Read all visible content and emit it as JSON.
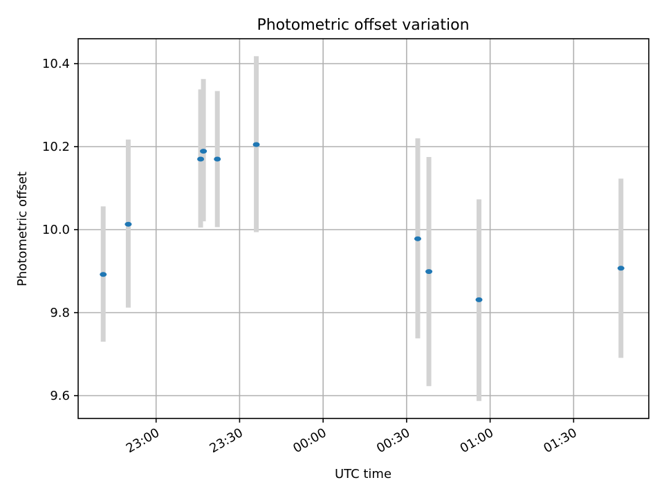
{
  "chart_data": {
    "type": "scatter",
    "title": "Photometric offset variation",
    "xlabel": "UTC time",
    "ylabel": "Photometric offset",
    "x_ticks": [
      "23:00",
      "23:30",
      "00:00",
      "00:30",
      "01:00",
      "01:30"
    ],
    "y_ticks": [
      "9.6",
      "9.8",
      "10.0",
      "10.2",
      "10.4"
    ],
    "xlim": [
      "22:32",
      "01:57"
    ],
    "ylim": [
      9.545,
      10.46
    ],
    "grid": true,
    "colors": {
      "point": "#1f77b4",
      "errorbar": "#d3d3d3",
      "grid": "#b0b0b0"
    },
    "points": [
      {
        "x": "22:41",
        "y": 9.892,
        "ylo": 9.73,
        "yhi": 10.056
      },
      {
        "x": "22:50",
        "y": 10.013,
        "ylo": 9.812,
        "yhi": 10.217
      },
      {
        "x": "23:16",
        "y": 10.17,
        "ylo": 10.005,
        "yhi": 10.338
      },
      {
        "x": "23:17",
        "y": 10.189,
        "ylo": 10.02,
        "yhi": 10.363
      },
      {
        "x": "23:22",
        "y": 10.17,
        "ylo": 10.006,
        "yhi": 10.334
      },
      {
        "x": "23:36",
        "y": 10.205,
        "ylo": 9.994,
        "yhi": 10.418
      },
      {
        "x": "00:34",
        "y": 9.978,
        "ylo": 9.738,
        "yhi": 10.22
      },
      {
        "x": "00:38",
        "y": 9.899,
        "ylo": 9.623,
        "yhi": 10.175
      },
      {
        "x": "00:56",
        "y": 9.831,
        "ylo": 9.587,
        "yhi": 10.073
      },
      {
        "x": "01:47",
        "y": 9.907,
        "ylo": 9.691,
        "yhi": 10.123
      }
    ]
  }
}
